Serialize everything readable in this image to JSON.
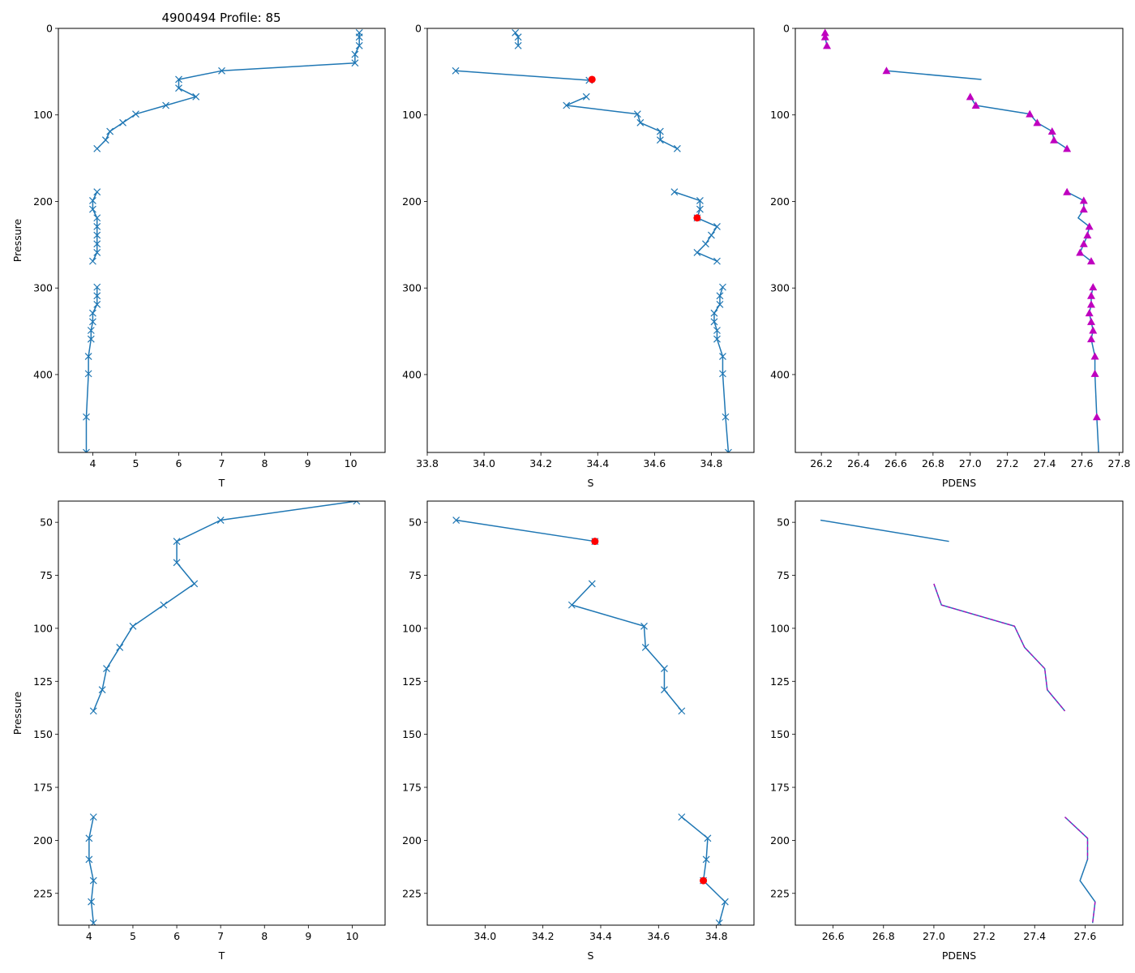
{
  "title": "4900494 Profile: 85",
  "colors": {
    "line": "#1f77b4",
    "flag": "#ff0000",
    "pdens_marker": "#bf00bf",
    "axes": "#000000"
  },
  "chart_data": [
    {
      "type": "line",
      "panel": "top-T",
      "xlabel": "T",
      "ylabel": "Pressure",
      "xlim": [
        3.2,
        10.8
      ],
      "ylim": [
        490,
        0
      ],
      "xticks": [
        4,
        5,
        6,
        7,
        8,
        9,
        10
      ],
      "yticks": [
        0,
        100,
        200,
        300,
        400
      ],
      "series": [
        {
          "name": "T",
          "marker": "x",
          "segments": [
            [
              [
                10.2,
                5
              ],
              [
                10.2,
                10
              ],
              [
                10.2,
                20
              ],
              [
                10.1,
                30
              ],
              [
                10.1,
                40
              ],
              [
                7.0,
                49
              ],
              [
                6.0,
                59
              ],
              [
                6.0,
                69
              ],
              [
                6.4,
                79
              ],
              [
                5.7,
                89
              ],
              [
                5.0,
                99
              ],
              [
                4.7,
                109
              ],
              [
                4.4,
                119
              ],
              [
                4.3,
                129
              ],
              [
                4.1,
                139
              ]
            ],
            [
              [
                4.1,
                189
              ],
              [
                4.0,
                199
              ],
              [
                4.0,
                209
              ],
              [
                4.1,
                219
              ],
              [
                4.1,
                229
              ],
              [
                4.1,
                239
              ],
              [
                4.1,
                249
              ],
              [
                4.1,
                259
              ],
              [
                4.0,
                269
              ]
            ],
            [
              [
                4.1,
                299
              ],
              [
                4.1,
                309
              ],
              [
                4.1,
                319
              ],
              [
                4.0,
                329
              ],
              [
                4.0,
                339
              ],
              [
                3.96,
                349
              ],
              [
                3.96,
                359
              ],
              [
                3.9,
                379
              ],
              [
                3.9,
                399
              ],
              [
                3.85,
                449
              ],
              [
                3.85,
                490
              ]
            ]
          ]
        }
      ]
    },
    {
      "type": "line",
      "panel": "top-S",
      "xlabel": "S",
      "ylabel": "",
      "xlim": [
        33.8,
        34.95
      ],
      "ylim": [
        490,
        0
      ],
      "xticks": [
        33.8,
        34.0,
        34.2,
        34.4,
        34.6,
        34.8
      ],
      "yticks": [
        0,
        100,
        200,
        300,
        400
      ],
      "series": [
        {
          "name": "S",
          "marker": "x",
          "segments": [
            [
              [
                34.11,
                5
              ],
              [
                34.12,
                10
              ],
              [
                34.12,
                20
              ]
            ],
            [
              [
                33.9,
                49
              ],
              [
                34.37,
                60
              ]
            ],
            [
              [
                34.36,
                79
              ],
              [
                34.29,
                89
              ],
              [
                34.54,
                99
              ],
              [
                34.55,
                109
              ],
              [
                34.62,
                119
              ],
              [
                34.62,
                129
              ],
              [
                34.68,
                139
              ]
            ],
            [
              [
                34.67,
                189
              ],
              [
                34.76,
                199
              ],
              [
                34.76,
                209
              ],
              [
                34.75,
                219
              ],
              [
                34.82,
                229
              ],
              [
                34.8,
                239
              ],
              [
                34.78,
                249
              ],
              [
                34.75,
                259
              ],
              [
                34.82,
                269
              ]
            ],
            [
              [
                34.84,
                299
              ],
              [
                34.83,
                309
              ],
              [
                34.83,
                319
              ],
              [
                34.81,
                329
              ],
              [
                34.81,
                339
              ],
              [
                34.82,
                349
              ],
              [
                34.82,
                359
              ],
              [
                34.84,
                379
              ],
              [
                34.84,
                399
              ],
              [
                34.85,
                449
              ],
              [
                34.86,
                490
              ]
            ]
          ]
        },
        {
          "name": "flagged",
          "marker": "o",
          "points": [
            [
              34.38,
              59
            ],
            [
              34.75,
              219
            ]
          ]
        }
      ]
    },
    {
      "type": "line",
      "panel": "top-PDENS",
      "xlabel": "PDENS",
      "ylabel": "",
      "xlim": [
        26.06,
        27.82
      ],
      "ylim": [
        490,
        0
      ],
      "xticks": [
        26.2,
        26.4,
        26.6,
        26.8,
        27.0,
        27.2,
        27.4,
        27.6,
        27.8
      ],
      "yticks": [
        0,
        100,
        200,
        300,
        400
      ],
      "series": [
        {
          "name": "PDENS",
          "marker": "none",
          "segments": [
            [
              [
                26.22,
                5
              ],
              [
                26.22,
                10
              ],
              [
                26.23,
                20
              ]
            ],
            [
              [
                26.55,
                49
              ],
              [
                27.06,
                59
              ]
            ],
            [
              [
                27.0,
                79
              ],
              [
                27.03,
                89
              ],
              [
                27.32,
                99
              ],
              [
                27.36,
                109
              ],
              [
                27.44,
                119
              ],
              [
                27.45,
                129
              ],
              [
                27.52,
                139
              ]
            ],
            [
              [
                27.52,
                189
              ],
              [
                27.61,
                199
              ],
              [
                27.61,
                209
              ],
              [
                27.58,
                219
              ],
              [
                27.64,
                229
              ],
              [
                27.63,
                239
              ],
              [
                27.61,
                249
              ],
              [
                27.59,
                259
              ],
              [
                27.65,
                269
              ]
            ],
            [
              [
                27.66,
                299
              ],
              [
                27.65,
                309
              ],
              [
                27.65,
                319
              ],
              [
                27.64,
                329
              ],
              [
                27.65,
                339
              ],
              [
                27.66,
                349
              ],
              [
                27.65,
                359
              ],
              [
                27.67,
                379
              ],
              [
                27.67,
                399
              ],
              [
                27.68,
                449
              ],
              [
                27.69,
                490
              ]
            ]
          ]
        },
        {
          "name": "PDENS-markers",
          "marker": "^",
          "points": [
            [
              26.22,
              5
            ],
            [
              26.22,
              10
            ],
            [
              26.23,
              20
            ],
            [
              26.55,
              49
            ],
            [
              27.0,
              79
            ],
            [
              27.03,
              89
            ],
            [
              27.32,
              99
            ],
            [
              27.36,
              109
            ],
            [
              27.44,
              119
            ],
            [
              27.45,
              129
            ],
            [
              27.52,
              139
            ],
            [
              27.52,
              189
            ],
            [
              27.61,
              199
            ],
            [
              27.61,
              209
            ],
            [
              27.64,
              229
            ],
            [
              27.63,
              239
            ],
            [
              27.61,
              249
            ],
            [
              27.59,
              259
            ],
            [
              27.65,
              269
            ],
            [
              27.66,
              299
            ],
            [
              27.65,
              309
            ],
            [
              27.65,
              319
            ],
            [
              27.64,
              329
            ],
            [
              27.65,
              339
            ],
            [
              27.66,
              349
            ],
            [
              27.65,
              359
            ],
            [
              27.67,
              379
            ],
            [
              27.67,
              399
            ],
            [
              27.68,
              449
            ]
          ]
        }
      ]
    },
    {
      "type": "line",
      "panel": "bottom-T",
      "xlabel": "T",
      "ylabel": "Pressure",
      "xlim": [
        3.3,
        10.75
      ],
      "ylim": [
        240,
        40
      ],
      "xticks": [
        4,
        5,
        6,
        7,
        8,
        9,
        10
      ],
      "yticks": [
        50,
        75,
        100,
        125,
        150,
        175,
        200,
        225
      ],
      "series": [
        {
          "name": "T",
          "marker": "x",
          "segments": [
            [
              [
                10.1,
                40
              ],
              [
                7.0,
                49
              ],
              [
                6.0,
                59
              ],
              [
                6.0,
                69
              ],
              [
                6.4,
                79
              ],
              [
                5.7,
                89
              ],
              [
                5.0,
                99
              ],
              [
                4.7,
                109
              ],
              [
                4.4,
                119
              ],
              [
                4.3,
                129
              ],
              [
                4.1,
                139
              ]
            ],
            [
              [
                4.1,
                189
              ],
              [
                4.0,
                199
              ],
              [
                4.0,
                209
              ],
              [
                4.1,
                219
              ],
              [
                4.05,
                229
              ],
              [
                4.1,
                239
              ]
            ]
          ]
        }
      ]
    },
    {
      "type": "line",
      "panel": "bottom-S",
      "xlabel": "S",
      "ylabel": "",
      "xlim": [
        33.8,
        34.93
      ],
      "ylim": [
        240,
        40
      ],
      "xticks": [
        34.0,
        34.2,
        34.4,
        34.6,
        34.8
      ],
      "yticks": [
        50,
        75,
        100,
        125,
        150,
        175,
        200,
        225
      ],
      "series": [
        {
          "name": "S",
          "marker": "x",
          "segments": [
            [
              [
                33.9,
                49
              ],
              [
                34.38,
                59
              ]
            ],
            [
              [
                34.37,
                79
              ],
              [
                34.3,
                89
              ],
              [
                34.55,
                99
              ],
              [
                34.555,
                109
              ],
              [
                34.62,
                119
              ],
              [
                34.62,
                129
              ],
              [
                34.68,
                139
              ]
            ],
            [
              [
                34.68,
                189
              ],
              [
                34.77,
                199
              ],
              [
                34.765,
                209
              ],
              [
                34.755,
                219
              ],
              [
                34.83,
                229
              ],
              [
                34.81,
                239
              ]
            ]
          ]
        },
        {
          "name": "flagged",
          "marker": "o",
          "points": [
            [
              34.38,
              59
            ],
            [
              34.755,
              219
            ]
          ]
        }
      ]
    },
    {
      "type": "line",
      "panel": "bottom-PDENS",
      "xlabel": "PDENS",
      "ylabel": "",
      "xlim": [
        26.45,
        27.75
      ],
      "ylim": [
        240,
        40
      ],
      "xticks": [
        26.6,
        26.8,
        27.0,
        27.2,
        27.4,
        27.6
      ],
      "yticks": [
        50,
        75,
        100,
        125,
        150,
        175,
        200,
        225
      ],
      "series": [
        {
          "name": "PDENS",
          "marker": "none",
          "segments": [
            [
              [
                26.55,
                49
              ],
              [
                27.06,
                59
              ]
            ],
            [
              [
                27.0,
                79
              ],
              [
                27.03,
                89
              ],
              [
                27.32,
                99
              ],
              [
                27.36,
                109
              ],
              [
                27.44,
                119
              ],
              [
                27.45,
                129
              ],
              [
                27.52,
                139
              ]
            ],
            [
              [
                27.52,
                189
              ],
              [
                27.61,
                199
              ],
              [
                27.61,
                209
              ],
              [
                27.58,
                219
              ],
              [
                27.64,
                229
              ],
              [
                27.63,
                239
              ]
            ]
          ]
        },
        {
          "name": "PDENS-dashed",
          "marker": "none",
          "style": "dashed",
          "segments": [
            [
              [
                27.0,
                79
              ],
              [
                27.03,
                89
              ],
              [
                27.32,
                99
              ],
              [
                27.36,
                109
              ],
              [
                27.44,
                119
              ],
              [
                27.45,
                129
              ],
              [
                27.52,
                139
              ]
            ],
            [
              [
                27.52,
                189
              ],
              [
                27.61,
                199
              ],
              [
                27.61,
                209
              ]
            ],
            [
              [
                27.64,
                229
              ],
              [
                27.63,
                239
              ]
            ]
          ]
        }
      ]
    }
  ]
}
